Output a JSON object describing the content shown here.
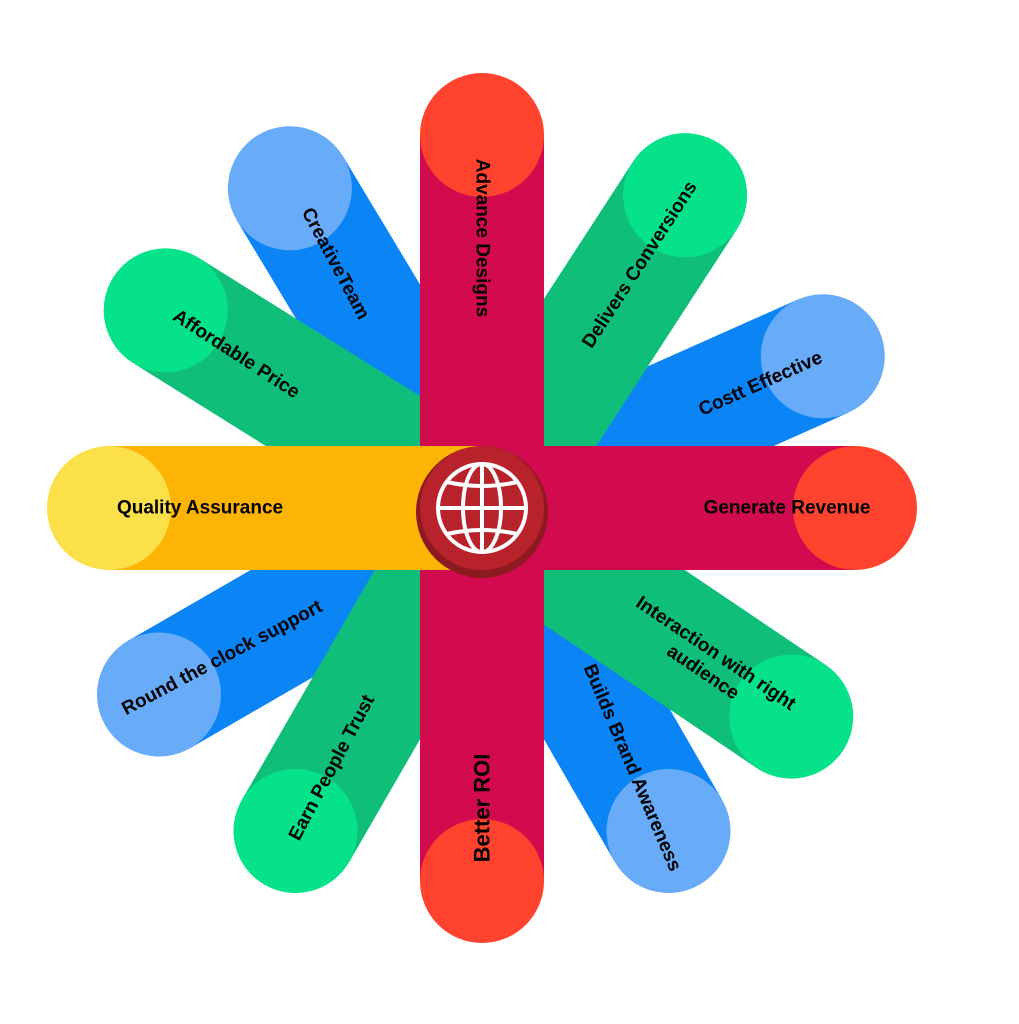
{
  "spokes": [
    {
      "label": "Advance  Designs",
      "angle": -90,
      "bar_color": "#d20a4e",
      "cap_color": "#ff432e",
      "text_rotate": 90,
      "font_size": 19
    },
    {
      "label": "Delivers Conversions",
      "angle": -57,
      "bar_color": "#0fbf79",
      "cap_color": "#06e28a",
      "text_rotate": -57,
      "font_size": 19
    },
    {
      "label": "Costt  Effective",
      "angle": -24,
      "bar_color": "#0b84f5",
      "cap_color": "#68abf8",
      "text_rotate": -24,
      "font_size": 19
    },
    {
      "label": "Generate  Revenue",
      "angle": 0,
      "bar_color": "#d20a4e",
      "cap_color": "#ff432e",
      "text_rotate": 0,
      "font_size": 19
    },
    {
      "label": "Interaction with  right audience",
      "angle": 34,
      "bar_color": "#0fbf79",
      "cap_color": "#06e28a",
      "text_rotate": 34,
      "font_size": 19
    },
    {
      "label": "Builds Brand Awareness",
      "angle": 60,
      "bar_color": "#0b84f5",
      "cap_color": "#68abf8",
      "text_rotate": 67,
      "font_size": 19
    },
    {
      "label": "Better ROI",
      "angle": 90,
      "bar_color": "#d20a4e",
      "cap_color": "#ff432e",
      "text_rotate": -90,
      "font_size": 22
    },
    {
      "label": "Earn People Trust",
      "angle": 120,
      "bar_color": "#0fbf79",
      "cap_color": "#06e28a",
      "text_rotate": -62,
      "font_size": 19
    },
    {
      "label": "Round the clock support",
      "angle": 150,
      "bar_color": "#0b84f5",
      "cap_color": "#68abf8",
      "text_rotate": -28,
      "font_size": 19
    },
    {
      "label": "Quality Assurance",
      "angle": 180,
      "bar_color": "#fdb404",
      "cap_color": "#fce04a",
      "text_rotate": 0,
      "font_size": 19
    },
    {
      "label": "Affordable Price",
      "angle": -148,
      "bar_color": "#0fbf79",
      "cap_color": "#06e28a",
      "text_rotate": 33,
      "font_size": 19
    },
    {
      "label": "CreativeTeam",
      "angle": -121,
      "bar_color": "#0b84f5",
      "cap_color": "#68abf8",
      "text_rotate": 62,
      "font_size": 19
    }
  ],
  "hub": {
    "fill": "#b8232b",
    "shadow": "#8c1a20",
    "icon": "globe-icon",
    "icon_color": "#ffffff"
  }
}
